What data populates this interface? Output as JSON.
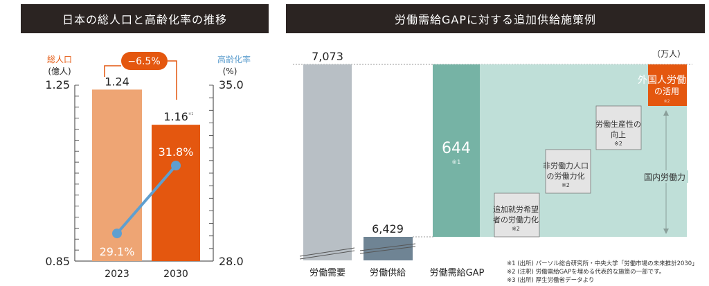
{
  "left_title": "日本の総人口と高齢化率の推移",
  "right_title": "労働需給GAPに対する追加供給施策例",
  "colors": {
    "header_bg": "#2b2422",
    "bar_2023": "#eea574",
    "bar_2030": "#e4570f",
    "line": "#5f9fcf",
    "axis_left_label": "#e4570f",
    "axis_right_label": "#5f9fcf",
    "demand_bar": "#b8bfc5",
    "supply_bar": "#6f8494",
    "gap_bar": "#76b3a5",
    "gap_area": "#bfdfd8",
    "foreign_box": "#e4570f"
  },
  "chart_data": [
    {
      "type": "bar",
      "title": "日本の総人口と高齢化率の推移",
      "categories": [
        "2023",
        "2030"
      ],
      "series": [
        {
          "name": "総人口",
          "unit": "(億人)",
          "values": [
            1.24,
            1.16
          ],
          "value_labels": [
            "1.24",
            "1.16"
          ],
          "marker_2030": "※1"
        },
        {
          "name": "高齢化率",
          "unit": "(%)",
          "type": "line",
          "values": [
            29.1,
            31.8
          ],
          "value_labels": [
            "29.1%",
            "31.8%"
          ]
        }
      ],
      "left_axis": {
        "label": "総人口",
        "unit": "(億人)",
        "ylim": [
          0.85,
          1.25
        ],
        "ticks": [
          "1.25",
          "0.85"
        ]
      },
      "right_axis": {
        "label": "高齢化率",
        "unit": "(%)",
        "ylim": [
          28.0,
          35.0
        ],
        "ticks": [
          "35.0",
          "28.0"
        ]
      },
      "annotation": "−6.5%"
    },
    {
      "type": "bar",
      "title": "労働需給GAPに対する追加供給施策例",
      "unit": "（万人）",
      "categories": [
        "労働需要",
        "労働供給",
        "労働需給GAP"
      ],
      "values": [
        7073,
        6429,
        644
      ],
      "value_labels": [
        "7,073",
        "6,429",
        "644"
      ],
      "gap_note": "※1",
      "measures": [
        {
          "label": [
            "追加就労希望",
            "者の労働力化"
          ],
          "note": "※2"
        },
        {
          "label": [
            "非労働力人口",
            "の労働力化"
          ],
          "note": "※2"
        },
        {
          "label": [
            "労働生産性の",
            "向上"
          ],
          "note": "※2"
        },
        {
          "label": [
            "外国人労働力",
            "の活用"
          ],
          "note": "※2"
        }
      ],
      "domestic_label": "国内労働力"
    }
  ],
  "footnotes": [
    "※1 (出所) パーソル総合研究所・中央大学「労働市場の未来推計2030」",
    "※2 (注釈) 労働需給GAPを埋める代表的な施策の一部です。",
    "※3 (出所) 厚生労働省データより"
  ]
}
